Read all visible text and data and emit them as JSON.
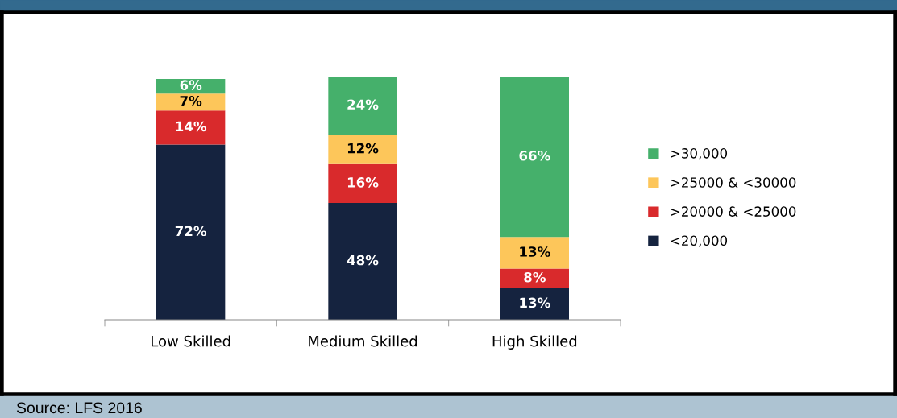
{
  "chart_data": {
    "type": "bar",
    "stacked": true,
    "categories": [
      "Low Skilled",
      "Medium Skilled",
      "High Skilled"
    ],
    "series": [
      {
        "name": "<20,000",
        "color": "#15233f",
        "values": [
          72,
          48,
          13
        ],
        "value_labels": [
          "72%",
          "48%",
          "13%"
        ]
      },
      {
        "name": ">20000 & <25000",
        "color": "#d92a2c",
        "values": [
          14,
          16,
          8
        ],
        "value_labels": [
          "14%",
          "16%",
          "8%"
        ]
      },
      {
        "name": ">25000 & <30000",
        "color": "#fdc65a",
        "values": [
          7,
          12,
          13
        ],
        "value_labels": [
          "7%",
          "12%",
          "13%"
        ]
      },
      {
        "name": ">30,000",
        "color": "#45b06b",
        "values": [
          6,
          24,
          66
        ],
        "value_labels": [
          "6%",
          "24%",
          "66%"
        ]
      }
    ],
    "legend": "right",
    "grid": false,
    "annotations": [
      "Source: LFS 2016"
    ]
  }
}
